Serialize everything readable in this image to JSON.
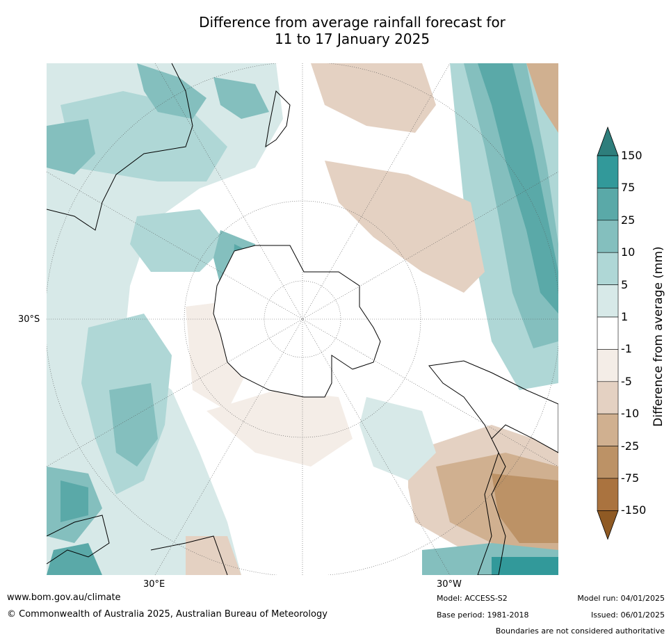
{
  "title": {
    "line1": "Difference from average rainfall forecast for",
    "line2": "11 to 17 January 2025"
  },
  "map": {
    "projection": "south-polar-stereographic",
    "axis_labels": {
      "left": "30°S",
      "bottom_left": "30°E",
      "bottom_right": "30°W"
    }
  },
  "legend": {
    "title": "Difference from average (mm)",
    "ticks": [
      "150",
      "75",
      "25",
      "10",
      "5",
      "1",
      "-1",
      "-5",
      "-10",
      "-25",
      "-75",
      "-150"
    ],
    "colors": [
      "#2e7e7c",
      "#32999a",
      "#5aa9a8",
      "#84bfbe",
      "#afd7d6",
      "#d7e9e8",
      "#ffffff",
      "#f4ede7",
      "#e4d1c2",
      "#d0b090",
      "#bc9266",
      "#aa733f",
      "#8f5a24"
    ]
  },
  "footer": {
    "url": "www.bom.gov.au/climate",
    "copyright": "© Commonwealth of Australia 2025, Australian Bureau of Meteorology",
    "model": "Model: ACCESS-S2",
    "base_period": "Base period: 1981-2018",
    "model_run": "Model run: 04/01/2025",
    "issued": "Issued: 06/01/2025",
    "disclaimer": "Boundaries are not considered authoritative"
  }
}
